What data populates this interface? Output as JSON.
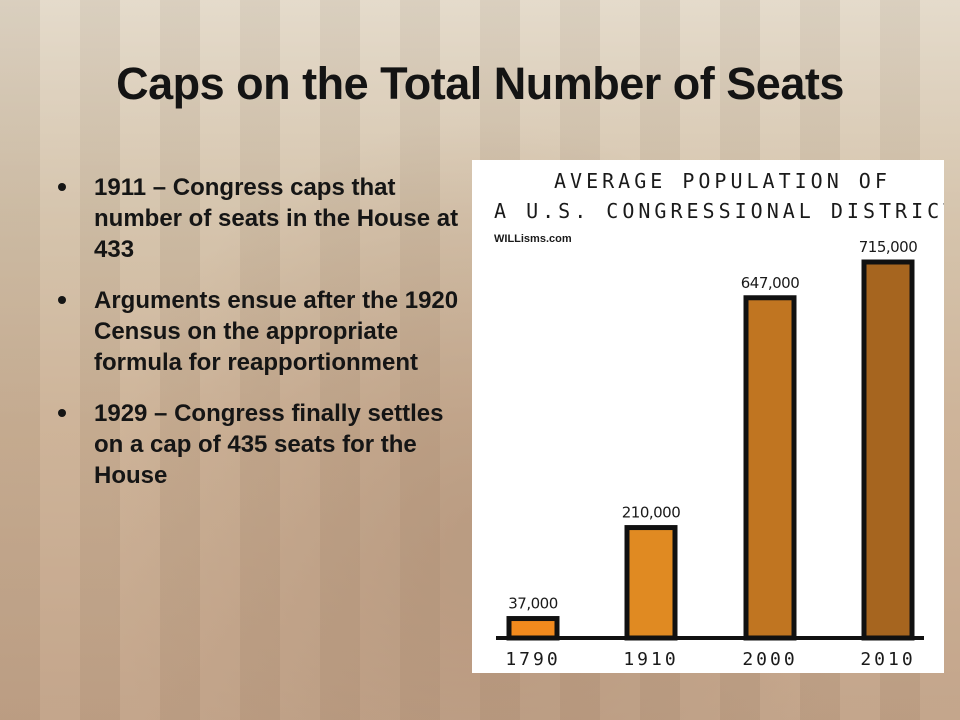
{
  "slide": {
    "title": "Caps on the Total Number of Seats",
    "bullets": [
      "1911 – Congress caps that number of seats in the House at 433",
      "Arguments ensue after the 1920 Census on the appropriate formula for reapportionment",
      "1929 – Congress finally settles on a cap of 435 seats for the House"
    ]
  },
  "chart_data": {
    "type": "bar",
    "title_line1": "AVERAGE POPULATION OF",
    "title_line2": "A U.S. CONGRESSIONAL DISTRICT",
    "credit": "WILLisms.com",
    "categories": [
      "1790",
      "1910",
      "2000",
      "2010"
    ],
    "values": [
      37000,
      210000,
      647000,
      715000
    ],
    "value_labels": [
      "37,000",
      "210,000",
      "647,000",
      "715,000"
    ],
    "colors": [
      "#f28a1d",
      "#e08a22",
      "#c07521",
      "#a6651f"
    ],
    "outline_color": "#111111",
    "ylim": [
      0,
      715000
    ],
    "grid": false,
    "legend": "none"
  }
}
